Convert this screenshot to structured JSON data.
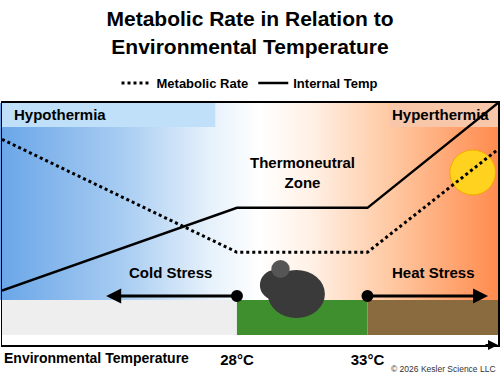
{
  "chart_data": {
    "type": "line",
    "title": "Metabolic Rate in Relation to\nEnvironmental Temperature",
    "xlabel": "Environmental Temperature",
    "x": [
      19,
      28,
      33,
      38
    ],
    "xlim": [
      19,
      38
    ],
    "xticks": [
      {
        "value": 28,
        "label": "28°C"
      },
      {
        "value": 33,
        "label": "33°C"
      }
    ],
    "ylim": [
      -20,
      100
    ],
    "tick_labels": "x",
    "grid": false,
    "legend": "top",
    "series": [
      {
        "name": "Metabolic Rate",
        "color": "#000000",
        "line_style": "dotted",
        "values": [
          82,
          26,
          26,
          77
        ]
      },
      {
        "name": "Internal Temp",
        "color": "#000000",
        "line_style": "solid",
        "values": [
          7,
          48,
          48,
          100
        ]
      }
    ],
    "annotations": {
      "hypothermia": "Hypothermia",
      "hyperthermia": "Hyperthermia",
      "thermoneutral": "Thermoneutral\nZone",
      "cold_stress": "Cold Stress",
      "heat_stress": "Heat Stress",
      "credit": "© 2026 Kesler Science LLC"
    }
  }
}
